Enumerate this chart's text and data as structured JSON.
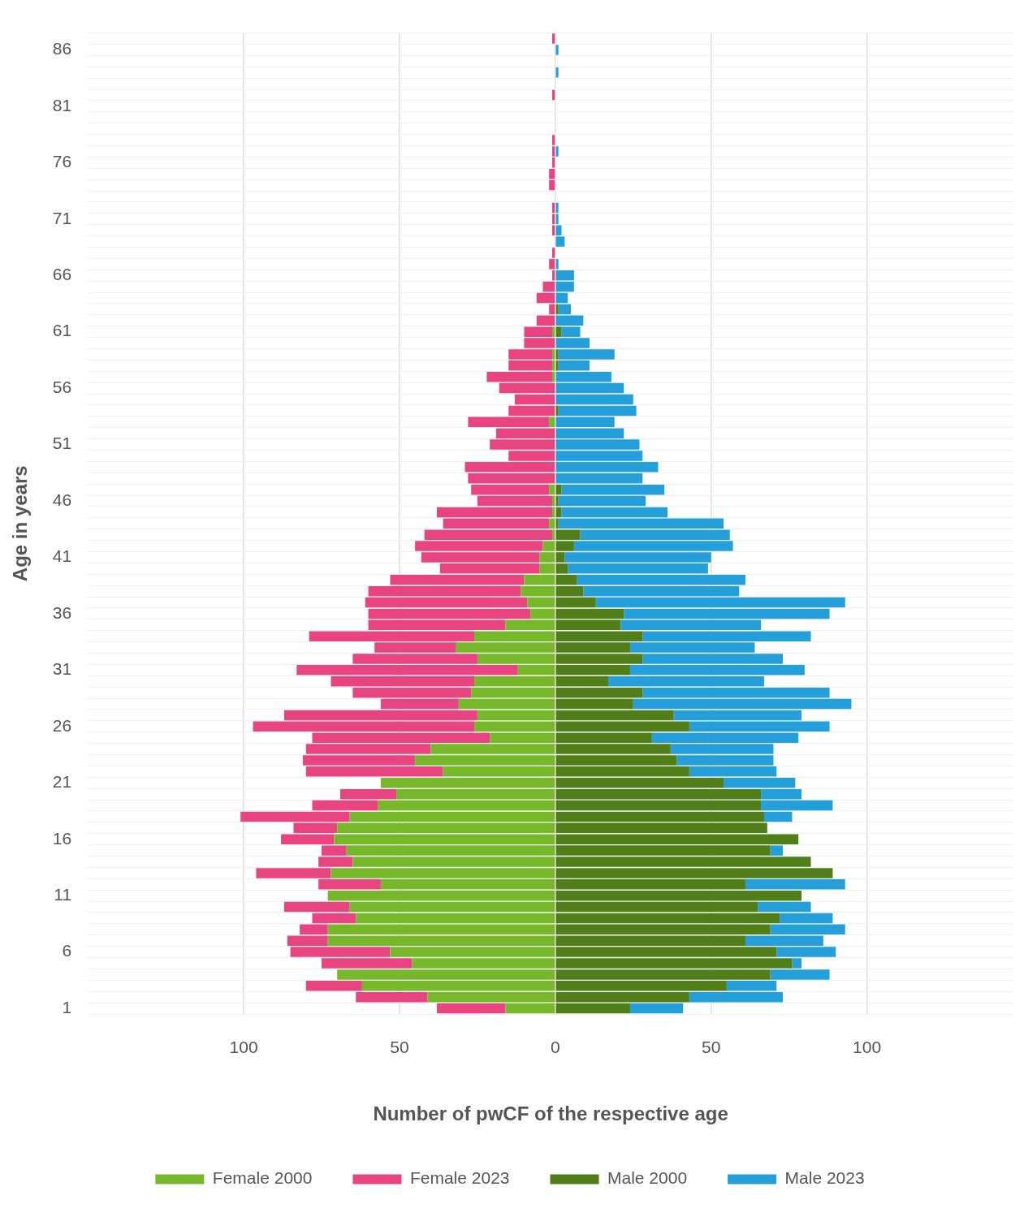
{
  "chart_data": {
    "type": "bar",
    "orientation": "horizontal",
    "stacked": true,
    "xlabel": "Number of pwCF of the respective age",
    "ylabel": "Age in years",
    "categories": [
      null,
      "86",
      null,
      null,
      null,
      null,
      "81",
      null,
      null,
      null,
      null,
      "76",
      null,
      null,
      null,
      null,
      "71",
      null,
      null,
      null,
      null,
      "66",
      null,
      null,
      null,
      null,
      "61",
      null,
      null,
      null,
      null,
      "56",
      null,
      null,
      null,
      null,
      "51",
      null,
      null,
      null,
      null,
      "46",
      null,
      null,
      null,
      null,
      "41",
      null,
      null,
      null,
      null,
      "36",
      null,
      null,
      null,
      null,
      "31",
      null,
      null,
      null,
      null,
      "26",
      null,
      null,
      null,
      null,
      "21",
      null,
      null,
      null,
      null,
      "16",
      null,
      null,
      null,
      null,
      "11",
      null,
      null,
      null,
      null,
      "6",
      null,
      null,
      null,
      null,
      "1"
    ],
    "series": [
      {
        "name": "Female 2000",
        "color": "#77b82a",
        "values": [
          null,
          null,
          null,
          null,
          null,
          null,
          null,
          null,
          null,
          null,
          null,
          null,
          null,
          null,
          null,
          null,
          null,
          null,
          null,
          null,
          null,
          null,
          null,
          null,
          null,
          null,
          -1,
          null,
          -1,
          -1,
          -1,
          null,
          null,
          null,
          -2,
          null,
          null,
          null,
          null,
          null,
          -2,
          -1,
          -1,
          -2,
          -1,
          -4,
          -5,
          -5,
          -10,
          -11,
          -9,
          -8,
          -16,
          -26,
          -32,
          -25,
          -12,
          -26,
          -27,
          -31,
          -25,
          -26,
          -21,
          -40,
          -45,
          -36,
          -56,
          -51,
          -57,
          -66,
          -70,
          -71,
          -67,
          -65,
          -72,
          -56,
          -73,
          -66,
          -64,
          -73,
          -73,
          -53,
          -46,
          -70,
          -62,
          -41,
          -16
        ]
      },
      {
        "name": "Female 2023",
        "color": "#e84580",
        "values": [
          -1,
          null,
          null,
          null,
          null,
          -1,
          null,
          null,
          null,
          -1,
          -1,
          -1,
          -2,
          -2,
          null,
          -1,
          -1,
          -1,
          null,
          -1,
          -2,
          -1,
          -4,
          -6,
          -2,
          -6,
          -9,
          -10,
          -14,
          -14,
          -21,
          -18,
          -13,
          -15,
          -26,
          -19,
          -21,
          -15,
          -29,
          -28,
          -25,
          -24,
          -37,
          -34,
          -41,
          -41,
          -38,
          -32,
          -43,
          -49,
          -52,
          -52,
          -44,
          -53,
          -26,
          -40,
          -71,
          -46,
          -38,
          -25,
          -62,
          -71,
          -57,
          -40,
          -36,
          -44,
          null,
          -18,
          -21,
          -35,
          -14,
          -17,
          -8,
          -11,
          -24,
          -20,
          null,
          -21,
          -14,
          -9,
          -13,
          -32,
          -29,
          null,
          -18,
          -23,
          -22
        ]
      },
      {
        "name": "Male 2000",
        "color": "#507f1a",
        "values": [
          null,
          null,
          null,
          null,
          null,
          null,
          null,
          null,
          null,
          null,
          null,
          null,
          null,
          null,
          null,
          null,
          null,
          null,
          null,
          null,
          null,
          null,
          null,
          null,
          1,
          null,
          2,
          null,
          1,
          1,
          null,
          null,
          null,
          1,
          null,
          null,
          null,
          null,
          null,
          null,
          2,
          1,
          2,
          1,
          8,
          6,
          3,
          4,
          7,
          9,
          13,
          22,
          21,
          28,
          24,
          28,
          24,
          17,
          28,
          25,
          38,
          43,
          31,
          37,
          39,
          43,
          54,
          66,
          66,
          67,
          68,
          78,
          69,
          82,
          89,
          61,
          79,
          65,
          72,
          69,
          61,
          71,
          76,
          69,
          55,
          43,
          24
        ]
      },
      {
        "name": "Male 2023",
        "color": "#259fd9",
        "values": [
          null,
          1,
          null,
          1,
          null,
          null,
          null,
          null,
          null,
          null,
          1,
          null,
          null,
          null,
          null,
          1,
          1,
          2,
          3,
          null,
          1,
          6,
          6,
          4,
          4,
          9,
          6,
          11,
          18,
          10,
          18,
          22,
          25,
          25,
          19,
          22,
          27,
          28,
          33,
          28,
          33,
          28,
          34,
          53,
          48,
          51,
          47,
          45,
          54,
          50,
          80,
          66,
          45,
          54,
          40,
          45,
          56,
          50,
          60,
          70,
          41,
          45,
          47,
          33,
          31,
          28,
          23,
          13,
          23,
          9,
          null,
          null,
          4,
          null,
          null,
          32,
          null,
          17,
          17,
          24,
          25,
          19,
          3,
          19,
          16,
          30,
          17
        ]
      }
    ],
    "xlim": [
      -150,
      147
    ],
    "xticks": [
      {
        "value": -100,
        "label": "100"
      },
      {
        "value": -50,
        "label": "50"
      },
      0,
      50,
      100
    ],
    "grid": true,
    "legend": "bottom"
  }
}
